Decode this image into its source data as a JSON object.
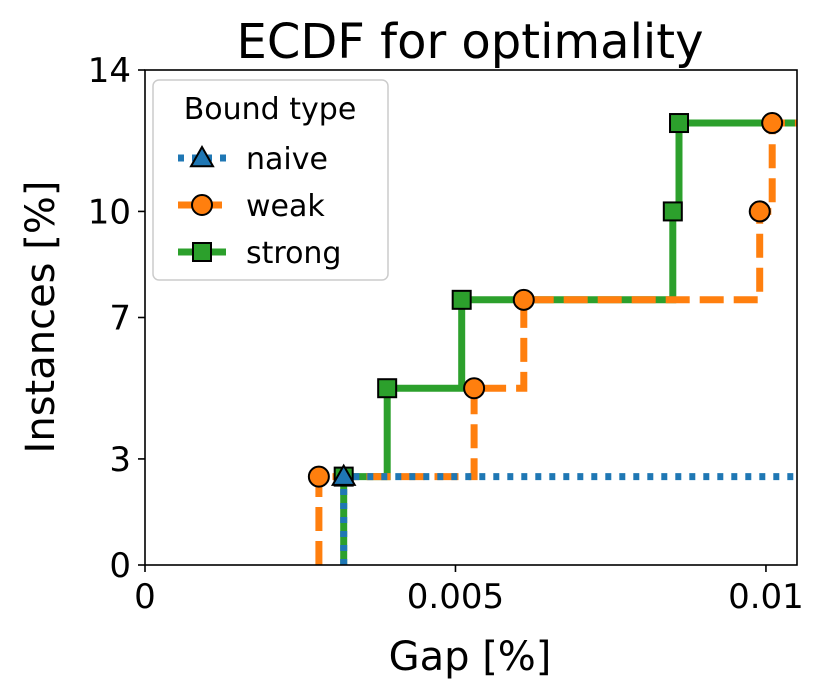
{
  "chart_data": {
    "type": "line",
    "title": "ECDF for optimality",
    "xlabel": "Gap [%]",
    "ylabel": "Instances [%]",
    "xlim": [
      0,
      0.0105
    ],
    "ylim": [
      0,
      14
    ],
    "xticks": [
      0,
      0.005,
      0.01
    ],
    "xtick_labels": [
      "0",
      "0.005",
      "0.01"
    ],
    "yticks": [
      0,
      3,
      7,
      10,
      14
    ],
    "ytick_labels": [
      "0",
      "3",
      "7",
      "10",
      "14"
    ],
    "legend": {
      "title": "Bound type",
      "position": "upper-left"
    },
    "series": [
      {
        "name": "naive",
        "color": "#1f77b4",
        "linestyle": "dotted",
        "marker": "triangle",
        "x": [
          0.0032
        ],
        "y": [
          2.5
        ],
        "marker_x": [
          0.0032
        ],
        "marker_y": [
          2.5
        ],
        "extend_to": 0.0105
      },
      {
        "name": "weak",
        "color": "#ff7f0e",
        "linestyle": "dashed",
        "marker": "circle",
        "x": [
          0.0028,
          0.0053,
          0.0061,
          0.0099,
          0.0101
        ],
        "y": [
          2.5,
          5.0,
          7.5,
          10.0,
          12.5
        ],
        "marker_x": [
          0.0028,
          0.0053,
          0.0061,
          0.0099,
          0.0101
        ],
        "marker_y": [
          2.5,
          5.0,
          7.5,
          10.0,
          12.5
        ],
        "extend_to": 0.0105
      },
      {
        "name": "strong",
        "color": "#2ca02c",
        "linestyle": "solid",
        "marker": "square",
        "x": [
          0.0032,
          0.0039,
          0.0051,
          0.0085,
          0.0086
        ],
        "y": [
          2.5,
          5.0,
          7.5,
          10.0,
          12.5
        ],
        "marker_x": [
          0.0032,
          0.0039,
          0.0051,
          0.0085,
          0.0086
        ],
        "marker_y": [
          2.5,
          5.0,
          7.5,
          10.0,
          12.5
        ],
        "extend_to": 0.0105
      }
    ]
  }
}
